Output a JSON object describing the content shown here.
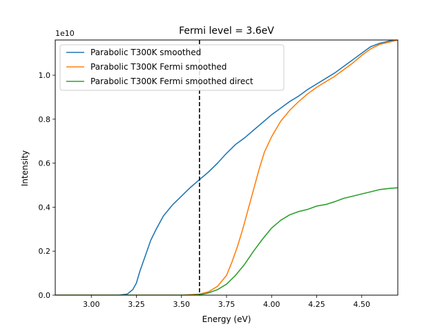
{
  "chart_data": {
    "type": "line",
    "title": "Fermi level = 3.6eV",
    "xlabel": "Energy (eV)",
    "ylabel": "Intensity",
    "y_offset_label": "1e10",
    "xlim": [
      2.8,
      4.7
    ],
    "ylim": [
      0,
      1.16
    ],
    "y_unit_scale": 10000000000.0,
    "xticks": [
      3.0,
      3.25,
      3.5,
      3.75,
      4.0,
      4.25,
      4.5
    ],
    "xtick_labels": [
      "3.00",
      "3.25",
      "3.50",
      "3.75",
      "4.00",
      "4.25",
      "4.50"
    ],
    "yticks": [
      0.0,
      0.2,
      0.4,
      0.6,
      0.8,
      1.0
    ],
    "ytick_labels": [
      "0.0",
      "0.2",
      "0.4",
      "0.6",
      "0.8",
      "1.0"
    ],
    "grid": false,
    "legend_position": "top-left",
    "vline": {
      "x": 3.6,
      "style": "dashed",
      "color": "#000000"
    },
    "series": [
      {
        "name": "Parabolic T300K smoothed",
        "color": "#1f77b4",
        "x": [
          2.8,
          3.15,
          3.2,
          3.23,
          3.25,
          3.27,
          3.3,
          3.33,
          3.36,
          3.4,
          3.45,
          3.5,
          3.55,
          3.6,
          3.65,
          3.7,
          3.75,
          3.8,
          3.85,
          3.9,
          3.95,
          4.0,
          4.05,
          4.1,
          4.15,
          4.2,
          4.25,
          4.3,
          4.35,
          4.4,
          4.45,
          4.5,
          4.55,
          4.6,
          4.65,
          4.7
        ],
        "y": [
          0.0,
          0.0,
          0.005,
          0.025,
          0.055,
          0.11,
          0.18,
          0.25,
          0.3,
          0.36,
          0.41,
          0.45,
          0.49,
          0.525,
          0.56,
          0.6,
          0.645,
          0.685,
          0.715,
          0.75,
          0.785,
          0.82,
          0.85,
          0.88,
          0.905,
          0.935,
          0.96,
          0.985,
          1.01,
          1.04,
          1.07,
          1.1,
          1.13,
          1.145,
          1.155,
          1.16
        ]
      },
      {
        "name": "Parabolic T300K Fermi smoothed",
        "color": "#ff7f0e",
        "x": [
          2.8,
          3.5,
          3.6,
          3.65,
          3.7,
          3.75,
          3.78,
          3.81,
          3.84,
          3.87,
          3.9,
          3.93,
          3.96,
          4.0,
          4.05,
          4.1,
          4.15,
          4.2,
          4.25,
          4.3,
          4.35,
          4.4,
          4.45,
          4.5,
          4.55,
          4.6,
          4.65,
          4.7
        ],
        "y": [
          0.0,
          0.0,
          0.005,
          0.015,
          0.04,
          0.09,
          0.15,
          0.22,
          0.3,
          0.39,
          0.48,
          0.57,
          0.65,
          0.72,
          0.79,
          0.84,
          0.88,
          0.915,
          0.945,
          0.97,
          0.995,
          1.025,
          1.055,
          1.09,
          1.12,
          1.14,
          1.15,
          1.16
        ]
      },
      {
        "name": "Parabolic T300K Fermi smoothed direct",
        "color": "#2ca02c",
        "x": [
          2.8,
          3.55,
          3.6,
          3.65,
          3.7,
          3.75,
          3.8,
          3.85,
          3.9,
          3.95,
          4.0,
          4.05,
          4.1,
          4.15,
          4.2,
          4.25,
          4.3,
          4.35,
          4.4,
          4.45,
          4.5,
          4.55,
          4.6,
          4.65,
          4.7
        ],
        "y": [
          0.0,
          0.0,
          0.002,
          0.01,
          0.025,
          0.05,
          0.09,
          0.14,
          0.2,
          0.255,
          0.305,
          0.34,
          0.365,
          0.38,
          0.39,
          0.405,
          0.412,
          0.425,
          0.44,
          0.45,
          0.46,
          0.47,
          0.48,
          0.485,
          0.488
        ]
      }
    ]
  }
}
